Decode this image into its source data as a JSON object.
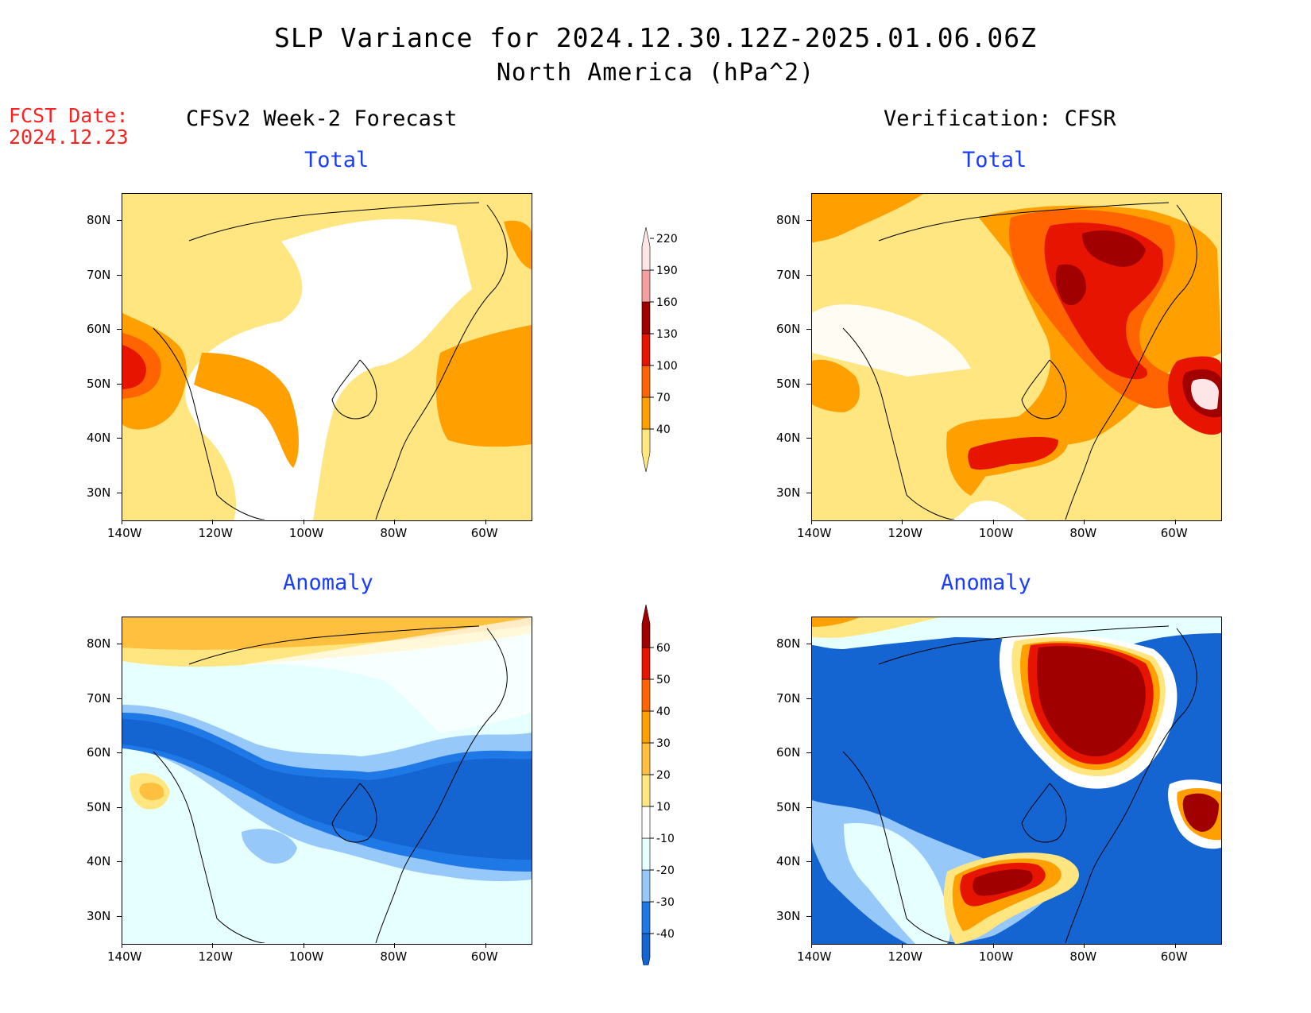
{
  "header": {
    "title": "SLP Variance for 2024.12.30.12Z-2025.01.06.06Z",
    "subtitle": "North America (hPa^2)",
    "fcst_label": "FCST Date:",
    "fcst_date": "2024.12.23",
    "left_column": "CFSv2 Week-2 Forecast",
    "right_column": "Verification: CFSR"
  },
  "panels": [
    {
      "id": "forecast-total",
      "label": "Total"
    },
    {
      "id": "verification-total",
      "label": "Total"
    },
    {
      "id": "forecast-anomaly",
      "label": "Anomaly"
    },
    {
      "id": "verification-anomaly",
      "label": "Anomaly"
    }
  ],
  "axes": {
    "lat_ticks": [
      "80N",
      "70N",
      "60N",
      "50N",
      "40N",
      "30N"
    ],
    "lon_ticks": [
      "140W",
      "120W",
      "100W",
      "80W",
      "60W"
    ],
    "lat_range": [
      25,
      85
    ],
    "lon_range": [
      -140,
      -50
    ]
  },
  "colorbars": {
    "total": {
      "levels": [
        "40",
        "70",
        "100",
        "130",
        "160",
        "190",
        "220"
      ],
      "colors": [
        "#ffe680",
        "#ffa000",
        "#ff6400",
        "#e61400",
        "#a00000",
        "#f5a0a0",
        "#ffe6e6"
      ]
    },
    "anomaly": {
      "levels": [
        "-40",
        "-30",
        "-20",
        "-10",
        "10",
        "20",
        "30",
        "40",
        "50",
        "60"
      ],
      "colors": [
        "#1464d2",
        "#1e78e6",
        "#96c8fa",
        "#e6ffff",
        "#ffffff",
        "#ffe680",
        "#ffc040",
        "#ffa000",
        "#ff6400",
        "#e61400",
        "#a00000"
      ]
    }
  }
}
